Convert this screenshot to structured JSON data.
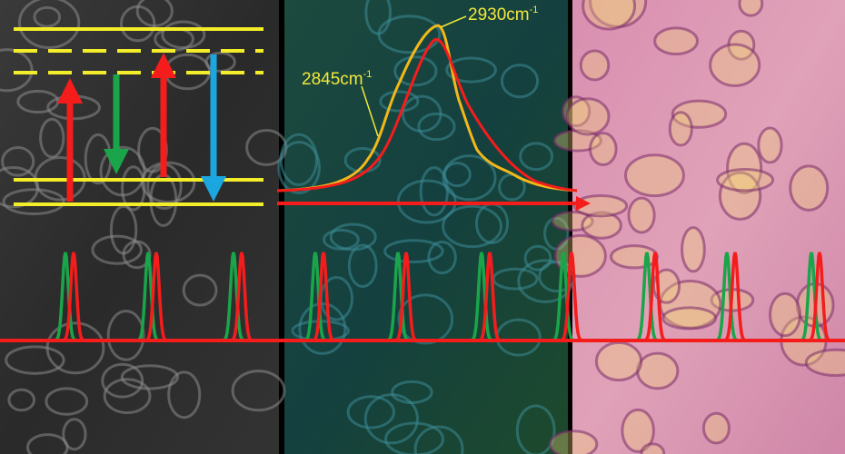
{
  "labels": [
    {
      "text": "2930cm",
      "superscript": "-1"
    },
    {
      "text": "2845cm",
      "superscript": "-1"
    }
  ]
}
